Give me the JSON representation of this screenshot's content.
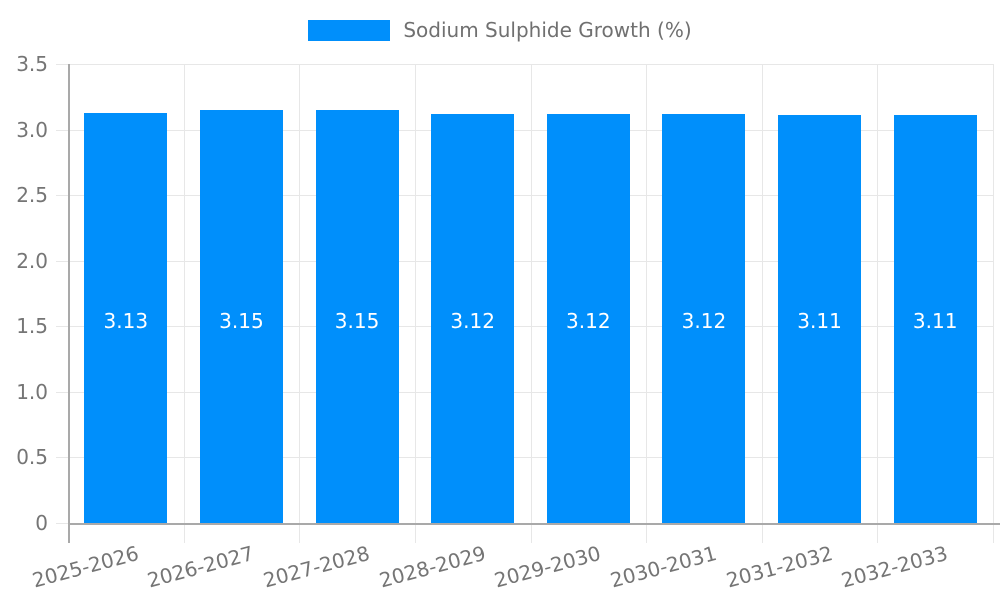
{
  "legend": {
    "label": "Sodium Sulphide Growth (%)"
  },
  "chart_data": {
    "type": "bar",
    "title": "",
    "xlabel": "",
    "ylabel": "",
    "categories": [
      "2025-2026",
      "2026-2027",
      "2027-2028",
      "2028-2029",
      "2029-2030",
      "2030-2031",
      "2031-2032",
      "2032-2033"
    ],
    "series": [
      {
        "name": "Sodium Sulphide Growth (%)",
        "values": [
          3.13,
          3.15,
          3.15,
          3.12,
          3.12,
          3.12,
          3.11,
          3.11
        ]
      }
    ],
    "bar_labels": [
      "3.13",
      "3.15",
      "3.15",
      "3.12",
      "3.12",
      "3.12",
      "3.11",
      "3.11"
    ],
    "ylim": [
      0,
      3.5
    ],
    "y_ticks": [
      0,
      0.5,
      1.0,
      1.5,
      2.0,
      2.5,
      3.0,
      3.5
    ],
    "y_tick_labels": [
      "0",
      "0.5",
      "1.0",
      "1.5",
      "2.0",
      "2.5",
      "3.0",
      "3.5"
    ],
    "grid": true,
    "legend_position": "top-center"
  },
  "colors": {
    "bar": "#008FFB",
    "grid": "#e7e7e7",
    "axis": "#a9a9a9",
    "tick_label": "#757575",
    "legend_text": "#707070",
    "bar_label": "#ffffff",
    "background": "#ffffff"
  }
}
